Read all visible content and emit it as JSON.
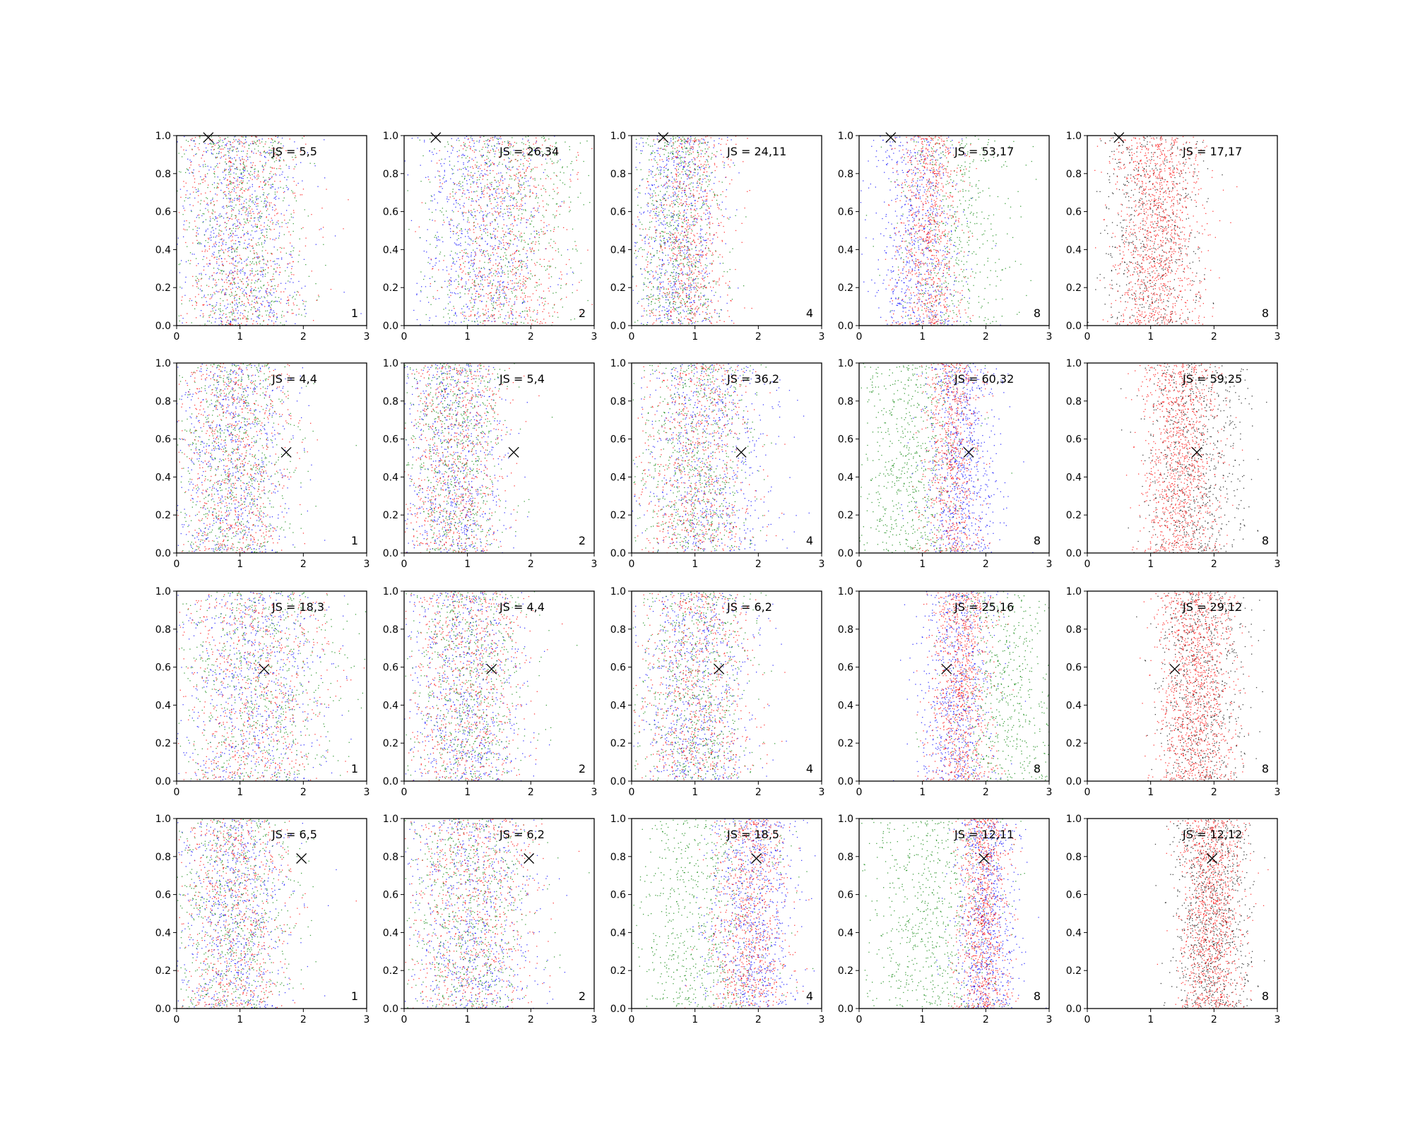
{
  "figure": {
    "description_rows": 4,
    "description_cols": 5
  },
  "chart_data": {
    "type": "scatter",
    "rows": 4,
    "cols": 5,
    "xlim": [
      0,
      3
    ],
    "ylim": [
      0,
      1
    ],
    "xticks": [
      "0",
      "1",
      "2",
      "3"
    ],
    "yticks": [
      "0.0",
      "0.2",
      "0.4",
      "0.6",
      "0.8",
      "1.0"
    ],
    "grid": false,
    "colors": {
      "blue": "#0000ff",
      "green": "#008000",
      "red": "#ff0000",
      "black": "#000000"
    },
    "marker_positions": [
      {
        "x": 0.5,
        "y": 0.99
      },
      {
        "x": 1.73,
        "y": 0.53
      },
      {
        "x": 1.38,
        "y": 0.59
      },
      {
        "x": 1.97,
        "y": 0.79
      }
    ],
    "panels": [
      {
        "row": 0,
        "col": 0,
        "js_label": "JS = 5,5",
        "corner_label": "1",
        "spread": [
          {
            "color": "blue",
            "mx": 1.0,
            "sx": 0.5,
            "n": 700
          },
          {
            "color": "green",
            "mx": 1.0,
            "sx": 0.5,
            "n": 700
          },
          {
            "color": "red",
            "mx": 1.0,
            "sx": 0.5,
            "n": 700
          }
        ]
      },
      {
        "row": 0,
        "col": 1,
        "js_label": "JS = 26,34",
        "corner_label": "2",
        "spread": [
          {
            "color": "blue",
            "mx": 1.2,
            "sx": 0.5,
            "n": 700
          },
          {
            "color": "green",
            "mx": 1.6,
            "sx": 0.6,
            "n": 700
          },
          {
            "color": "red",
            "mx": 1.6,
            "sx": 0.5,
            "n": 700
          }
        ]
      },
      {
        "row": 0,
        "col": 2,
        "js_label": "JS = 24,11",
        "corner_label": "4",
        "spread": [
          {
            "color": "blue",
            "mx": 0.7,
            "sx": 0.35,
            "n": 700
          },
          {
            "color": "green",
            "mx": 0.7,
            "sx": 0.35,
            "n": 700
          },
          {
            "color": "red",
            "mx": 0.9,
            "sx": 0.35,
            "n": 700
          }
        ]
      },
      {
        "row": 0,
        "col": 3,
        "js_label": "JS = 53,17",
        "corner_label": "8",
        "spread": [
          {
            "color": "blue",
            "mx": 0.9,
            "sx": 0.35,
            "n": 700
          },
          {
            "color": "green",
            "mx": 1.5,
            "sx": 0.5,
            "n": 500
          },
          {
            "color": "red",
            "mx": 1.1,
            "sx": 0.25,
            "n": 800
          }
        ]
      },
      {
        "row": 0,
        "col": 4,
        "js_label": "JS = 17,17",
        "corner_label": "8",
        "spread": [
          {
            "color": "black",
            "mx": 1.0,
            "sx": 0.4,
            "n": 600
          },
          {
            "color": "red",
            "mx": 1.1,
            "sx": 0.35,
            "n": 1200
          }
        ]
      },
      {
        "row": 1,
        "col": 0,
        "js_label": "JS = 4,4",
        "corner_label": "1",
        "spread": [
          {
            "color": "blue",
            "mx": 0.9,
            "sx": 0.45,
            "n": 700
          },
          {
            "color": "green",
            "mx": 0.9,
            "sx": 0.45,
            "n": 700
          },
          {
            "color": "red",
            "mx": 0.9,
            "sx": 0.45,
            "n": 700
          }
        ]
      },
      {
        "row": 1,
        "col": 1,
        "js_label": "JS = 5,4",
        "corner_label": "2",
        "spread": [
          {
            "color": "blue",
            "mx": 0.8,
            "sx": 0.4,
            "n": 700
          },
          {
            "color": "green",
            "mx": 0.8,
            "sx": 0.4,
            "n": 700
          },
          {
            "color": "red",
            "mx": 0.8,
            "sx": 0.4,
            "n": 700
          }
        ]
      },
      {
        "row": 1,
        "col": 2,
        "js_label": "JS = 36,2",
        "corner_label": "4",
        "spread": [
          {
            "color": "blue",
            "mx": 1.2,
            "sx": 0.5,
            "n": 700
          },
          {
            "color": "green",
            "mx": 1.0,
            "sx": 0.45,
            "n": 700
          },
          {
            "color": "red",
            "mx": 1.0,
            "sx": 0.45,
            "n": 700
          }
        ]
      },
      {
        "row": 1,
        "col": 3,
        "js_label": "JS = 60,32",
        "corner_label": "8",
        "spread": [
          {
            "color": "green",
            "mx": 0.8,
            "sx": 0.45,
            "n": 700
          },
          {
            "color": "blue",
            "mx": 1.6,
            "sx": 0.3,
            "n": 800
          },
          {
            "color": "red",
            "mx": 1.45,
            "sx": 0.22,
            "n": 700
          }
        ]
      },
      {
        "row": 1,
        "col": 4,
        "js_label": "JS = 59,25",
        "corner_label": "8",
        "spread": [
          {
            "color": "black",
            "mx": 1.7,
            "sx": 0.4,
            "n": 700
          },
          {
            "color": "red",
            "mx": 1.45,
            "sx": 0.3,
            "n": 1100
          }
        ]
      },
      {
        "row": 2,
        "col": 0,
        "js_label": "JS = 18,3",
        "corner_label": "1",
        "spread": [
          {
            "color": "blue",
            "mx": 1.2,
            "sx": 0.6,
            "n": 700
          },
          {
            "color": "green",
            "mx": 1.3,
            "sx": 0.6,
            "n": 700
          },
          {
            "color": "red",
            "mx": 1.2,
            "sx": 0.6,
            "n": 700
          }
        ]
      },
      {
        "row": 2,
        "col": 1,
        "js_label": "JS = 4,4",
        "corner_label": "2",
        "spread": [
          {
            "color": "blue",
            "mx": 1.0,
            "sx": 0.45,
            "n": 700
          },
          {
            "color": "green",
            "mx": 1.0,
            "sx": 0.45,
            "n": 700
          },
          {
            "color": "red",
            "mx": 1.0,
            "sx": 0.45,
            "n": 700
          }
        ]
      },
      {
        "row": 2,
        "col": 2,
        "js_label": "JS = 6,2",
        "corner_label": "4",
        "spread": [
          {
            "color": "blue",
            "mx": 1.0,
            "sx": 0.45,
            "n": 700
          },
          {
            "color": "green",
            "mx": 1.0,
            "sx": 0.45,
            "n": 700
          },
          {
            "color": "red",
            "mx": 1.0,
            "sx": 0.45,
            "n": 700
          }
        ]
      },
      {
        "row": 2,
        "col": 3,
        "js_label": "JS = 25,16",
        "corner_label": "8",
        "spread": [
          {
            "color": "blue",
            "mx": 1.55,
            "sx": 0.3,
            "n": 700
          },
          {
            "color": "green",
            "mx": 2.3,
            "sx": 0.45,
            "n": 600
          },
          {
            "color": "red",
            "mx": 1.6,
            "sx": 0.25,
            "n": 900
          }
        ]
      },
      {
        "row": 2,
        "col": 4,
        "js_label": "JS = 29,12",
        "corner_label": "8",
        "spread": [
          {
            "color": "black",
            "mx": 1.8,
            "sx": 0.35,
            "n": 700
          },
          {
            "color": "red",
            "mx": 1.7,
            "sx": 0.3,
            "n": 1200
          }
        ]
      },
      {
        "row": 3,
        "col": 0,
        "js_label": "JS = 6,5",
        "corner_label": "1",
        "spread": [
          {
            "color": "blue",
            "mx": 0.9,
            "sx": 0.45,
            "n": 700
          },
          {
            "color": "green",
            "mx": 0.9,
            "sx": 0.45,
            "n": 700
          },
          {
            "color": "red",
            "mx": 0.9,
            "sx": 0.45,
            "n": 700
          }
        ]
      },
      {
        "row": 3,
        "col": 1,
        "js_label": "JS = 6,2",
        "corner_label": "2",
        "spread": [
          {
            "color": "blue",
            "mx": 1.1,
            "sx": 0.5,
            "n": 700
          },
          {
            "color": "green",
            "mx": 1.0,
            "sx": 0.5,
            "n": 700
          },
          {
            "color": "red",
            "mx": 1.1,
            "sx": 0.5,
            "n": 700
          }
        ]
      },
      {
        "row": 3,
        "col": 2,
        "js_label": "JS = 18,5",
        "corner_label": "4",
        "spread": [
          {
            "color": "green",
            "mx": 1.1,
            "sx": 0.55,
            "n": 700
          },
          {
            "color": "blue",
            "mx": 1.9,
            "sx": 0.35,
            "n": 800
          },
          {
            "color": "red",
            "mx": 1.85,
            "sx": 0.3,
            "n": 800
          }
        ]
      },
      {
        "row": 3,
        "col": 3,
        "js_label": "JS = 12,11",
        "corner_label": "8",
        "spread": [
          {
            "color": "green",
            "mx": 1.1,
            "sx": 0.55,
            "n": 700
          },
          {
            "color": "blue",
            "mx": 2.0,
            "sx": 0.25,
            "n": 800
          },
          {
            "color": "red",
            "mx": 1.95,
            "sx": 0.2,
            "n": 900
          }
        ]
      },
      {
        "row": 3,
        "col": 4,
        "js_label": "JS = 12,12",
        "corner_label": "8",
        "spread": [
          {
            "color": "black",
            "mx": 1.95,
            "sx": 0.3,
            "n": 900
          },
          {
            "color": "red",
            "mx": 1.95,
            "sx": 0.25,
            "n": 1100
          }
        ]
      }
    ]
  }
}
